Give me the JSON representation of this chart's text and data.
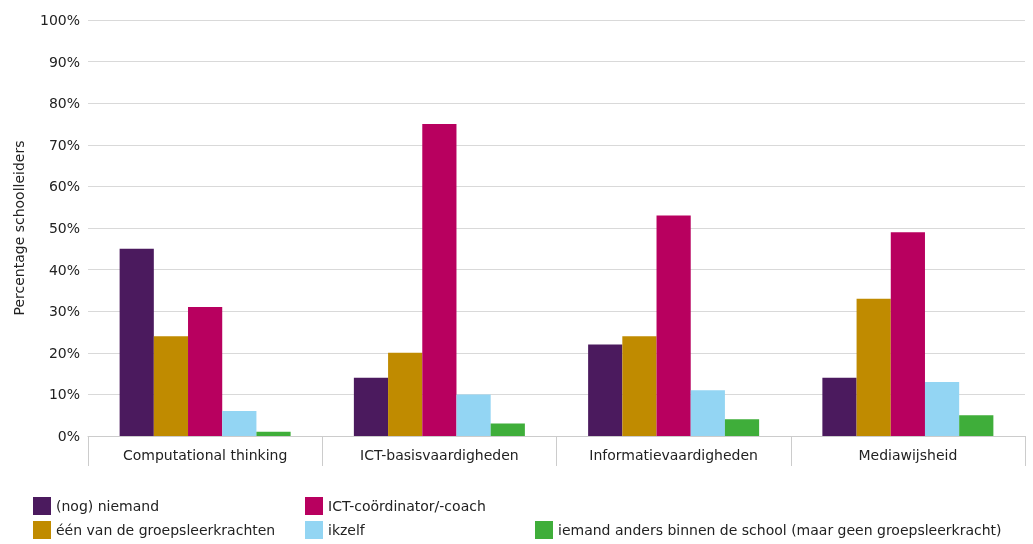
{
  "chart_data": {
    "type": "bar",
    "ylabel": "Percentage schoolleiders",
    "categories": [
      "Computational thinking",
      "ICT-basisvaardigheden",
      "Informatievaardigheden",
      "Mediawijsheid"
    ],
    "series": [
      {
        "name": "(nog) niemand",
        "color": "#4b1a5e",
        "values": [
          45,
          14,
          22,
          14
        ]
      },
      {
        "name": "één van de groepsleerkrachten",
        "color": "#c08b00",
        "values": [
          24,
          20,
          24,
          33
        ]
      },
      {
        "name": "ICT-coördinator/-coach",
        "color": "#b8005f",
        "values": [
          31,
          75,
          53,
          49
        ]
      },
      {
        "name": "ikzelf",
        "color": "#93d5f3",
        "values": [
          6,
          10,
          11,
          13
        ]
      },
      {
        "name": "iemand anders binnen de school (maar geen groepsleerkracht)",
        "color": "#3fae3a",
        "values": [
          1,
          3,
          4,
          5
        ]
      }
    ],
    "ylim": [
      0,
      100
    ],
    "yticks": [
      {
        "value": 0,
        "label": "0%"
      },
      {
        "value": 10,
        "label": "10%"
      },
      {
        "value": 20,
        "label": "20%"
      },
      {
        "value": 30,
        "label": "30%"
      },
      {
        "value": 40,
        "label": "40%"
      },
      {
        "value": 50,
        "label": "50%"
      },
      {
        "value": 60,
        "label": "60%"
      },
      {
        "value": 70,
        "label": "70%"
      },
      {
        "value": 80,
        "label": "80%"
      },
      {
        "value": 90,
        "label": "90%"
      },
      {
        "value": 100,
        "label": "100%"
      }
    ],
    "grid": "y",
    "legend": "bottom left"
  }
}
